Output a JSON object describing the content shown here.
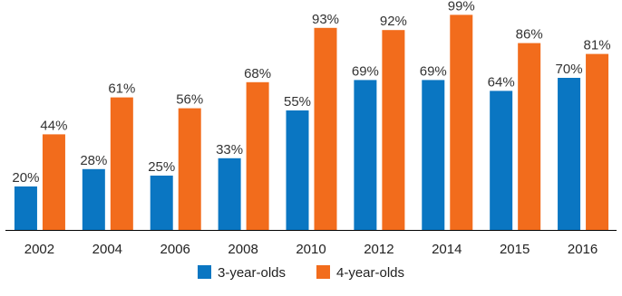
{
  "chart_data": {
    "type": "bar",
    "categories": [
      "2002",
      "2004",
      "2006",
      "2008",
      "2010",
      "2012",
      "2014",
      "2015",
      "2016"
    ],
    "series": [
      {
        "name": "3-year-olds",
        "color": "#0a76c2",
        "values": [
          20,
          28,
          25,
          33,
          55,
          69,
          69,
          64,
          70
        ],
        "labels": [
          "20%",
          "28%",
          "25%",
          "33%",
          "55%",
          "69%",
          "69%",
          "64%",
          "70%"
        ]
      },
      {
        "name": "4-year-olds",
        "color": "#f26c1c",
        "values": [
          44,
          61,
          56,
          68,
          93,
          92,
          99,
          86,
          81
        ],
        "labels": [
          "44%",
          "61%",
          "56%",
          "68%",
          "93%",
          "92%",
          "99%",
          "86%",
          "81%"
        ]
      }
    ],
    "ylim": [
      0,
      100
    ],
    "grid": false,
    "legend_position": "bottom-center"
  }
}
